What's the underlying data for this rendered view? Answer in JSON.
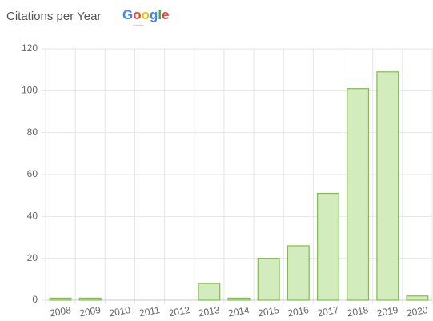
{
  "chart_data": {
    "type": "bar",
    "title": "Citations per Year",
    "logo": "Google",
    "logo_subtitle": "Scholar",
    "categories": [
      "2008",
      "2009",
      "2010",
      "2011",
      "2012",
      "2013",
      "2014",
      "2015",
      "2016",
      "2017",
      "2018",
      "2019",
      "2020"
    ],
    "values": [
      1,
      1,
      0,
      0,
      0,
      8,
      1,
      20,
      26,
      51,
      101,
      109,
      2
    ],
    "color": "#d3ecbd",
    "edge_color": "#7cc142",
    "ylim": [
      0,
      120
    ],
    "yticks": [
      0,
      20,
      40,
      60,
      80,
      100,
      120
    ],
    "grid": true
  }
}
